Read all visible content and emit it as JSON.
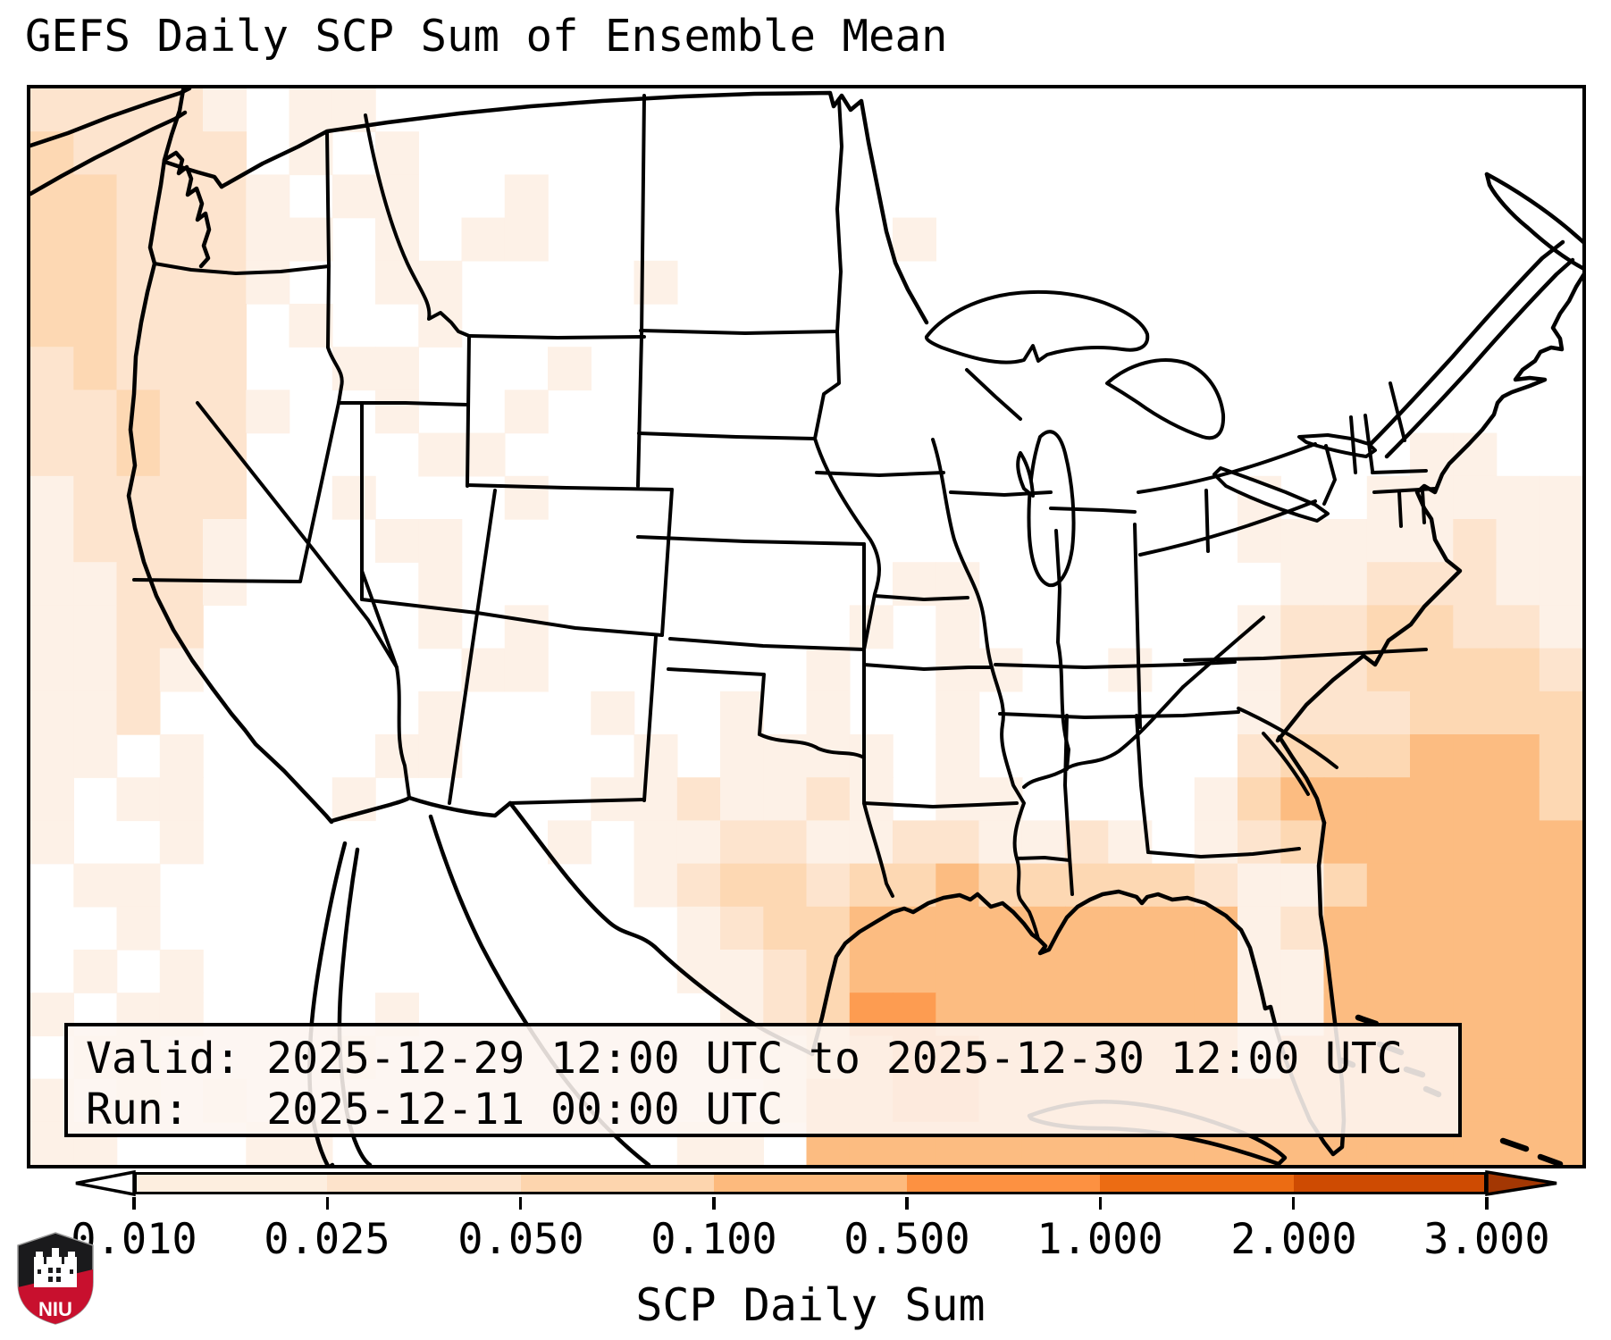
{
  "title": "GEFS Daily SCP Sum of Ensemble Mean",
  "info_box": {
    "valid_line": "Valid: 2025-12-29 12:00 UTC to 2025-12-30 12:00 UTC",
    "run_line": "Run:   2025-12-11 00:00 UTC"
  },
  "colorbar": {
    "label": "SCP Daily Sum",
    "tick_labels": [
      "0.010",
      "0.025",
      "0.050",
      "0.100",
      "0.500",
      "1.000",
      "2.000",
      "3.000"
    ],
    "tick_values": [
      0.01,
      0.025,
      0.05,
      0.1,
      0.5,
      1.0,
      2.0,
      3.0
    ],
    "segment_colors": [
      "#fdeedf",
      "#fde3cb",
      "#fdd5ae",
      "#fdba7d",
      "#fd9141",
      "#ec6c13",
      "#ce4b02"
    ],
    "under_color": "#ffffff",
    "over_color": "#a33703"
  },
  "logo": {
    "text": "NIU",
    "shield_black": "#1a1a1c",
    "shield_red": "#c8102e"
  },
  "map": {
    "region": "Continental United States with Gulf of Mexico, Mexico, Cuba and western Atlantic",
    "border_color": "#000000",
    "land_color": "#ffffff",
    "palette": {
      "1": "#fdf1e7",
      "2": "#fde4ce",
      "3": "#fdd8b3",
      "4": "#fcbc81",
      "5": "#fd9c51"
    },
    "level_value_ranges": {
      "1": "0.010-0.025",
      "2": "0.025-0.050",
      "3": "0.050-0.100",
      "4": "0.100-0.500",
      "5": "0.500-1.000"
    },
    "grid_cols": 36,
    "grid_rows": 25,
    "grid": [
      [
        "22221.",
        "11....",
        "......",
        "......",
        "......",
        "......"
      ],
      [
        "32222.",
        "1.1...",
        "......",
        "......",
        "......",
        "......"
      ],
      [
        "332221",
        ".11..1",
        "......",
        "......",
        "......",
        "......"
      ],
      [
        "332221",
        "1.1.11",
        "......",
        "..1...",
        "......",
        "......"
      ],
      [
        "332221",
        "..11..",
        "..1...",
        "......",
        "......",
        "......"
      ],
      [
        "33222.",
        "1..1..",
        "......",
        "......",
        "......",
        "......"
      ],
      [
        "23222.",
        ".11...",
        "1.....",
        "......",
        "......",
        "......"
      ],
      [
        "223221",
        "..1..1",
        "......",
        "......",
        "......",
        "......"
      ],
      [
        "22322.",
        "...11.",
        "......",
        "......",
        "......",
        "..11.."
      ],
      [
        "12222.",
        ".1...1",
        "......",
        "......",
        "....1.",
        ".11111"
      ],
      [
        "12221.",
        "..11..",
        "......",
        "......",
        "....11",
        "111211"
      ],
      [
        "11221.",
        "...1..",
        "......",
        "..11..",
        ".....1",
        "122211"
      ],
      [
        "1122..",
        "...1.1",
        "......",
        ".1.1..",
        "....12",
        "233221"
      ],
      [
        "1121..",
        "....11",
        "......",
        "1..11.",
        ".1..12",
        "233332"
      ],
      [
        "112...",
        "...1..",
        ".1..1.",
        "1..1..",
        "....12",
        "223333"
      ],
      [
        "11.1..",
        "..11..",
        "..1.11",
        "11.1..",
        "....23",
        "334443"
      ],
      [
        "1.11..",
        ".1....",
        ".11211",
        "21.11.",
        "...134",
        "444443"
      ],
      [
        "1..1..",
        "......",
        "1.1122",
        "112211",
        "21.123",
        "444444"
      ],
      [
        ".11...",
        "......",
        "..1233",
        "233433",
        "333211",
        "344444"
      ],
      [
        "..1...",
        "......",
        "...123",
        "344444",
        "444412",
        "444444"
      ],
      [
        ".1.1..",
        "......",
        "...112",
        "344444",
        "444411",
        "444444"
      ],
      [
        "1.11..",
        "..1...",
        "....12",
        "355444",
        "444411",
        "444444"
      ],
      [
        ".11...",
        ".1....",
        "....11",
        "345544",
        "444414",
        "444444"
      ],
      [
        "1.1.1.",
        "......",
        ".....1",
        "445544",
        "444444",
        "444444"
      ],
      [
        "11...1",
        "1.....",
        "...11.",
        "444444",
        "444444",
        "444444"
      ]
    ]
  }
}
